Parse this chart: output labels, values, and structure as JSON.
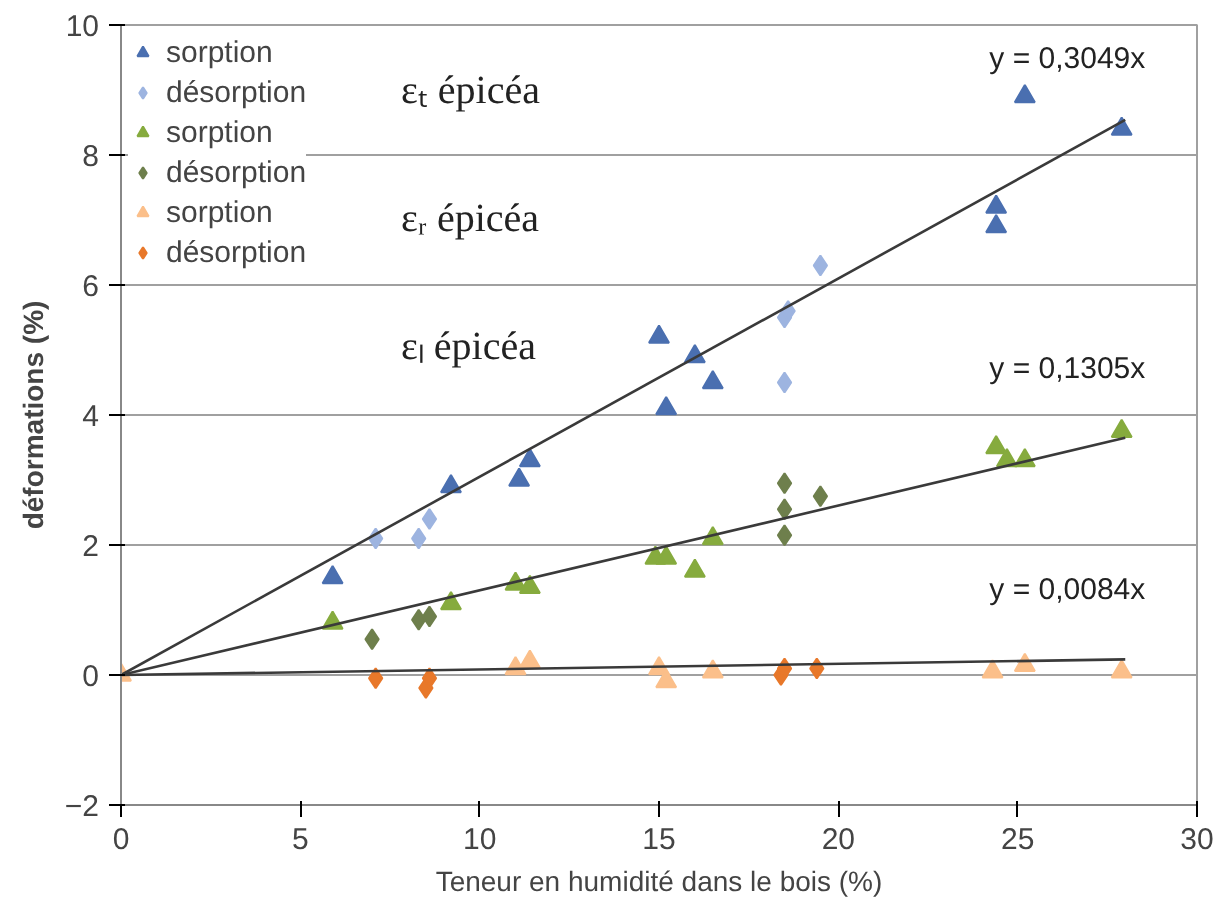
{
  "chart_data": {
    "type": "scatter",
    "xlabel": "Teneur en humidité dans le bois (%)",
    "ylabel": "déformations (%)",
    "xlim": [
      0,
      30
    ],
    "xticks": [
      0,
      5,
      10,
      15,
      20,
      25,
      30
    ],
    "ylim": [
      -2,
      10
    ],
    "yticks": [
      -2,
      0,
      2,
      4,
      6,
      8,
      10
    ],
    "grid": "y",
    "legend": "top left",
    "series": [
      {
        "name": "sorption",
        "color": "#4a6fb0",
        "marker": "triangle",
        "x": [
          5.9,
          9.2,
          11.1,
          11.4,
          15.0,
          15.2,
          16.0,
          16.5,
          24.4,
          24.4,
          25.2,
          27.9
        ],
        "values": [
          1.5,
          2.9,
          3.0,
          3.3,
          5.2,
          4.1,
          4.9,
          4.5,
          7.2,
          6.9,
          8.9,
          8.4
        ]
      },
      {
        "name": "désorption",
        "color": "#9db4e0",
        "marker": "diamond",
        "x": [
          7.1,
          8.3,
          8.6,
          18.5,
          18.6,
          19.5,
          18.5
        ],
        "values": [
          2.1,
          2.1,
          2.4,
          5.5,
          5.6,
          6.3,
          4.5
        ]
      },
      {
        "name": "sorption",
        "color": "#86ab3e",
        "marker": "triangle",
        "x": [
          5.9,
          9.2,
          11.0,
          11.4,
          14.9,
          15.2,
          16.0,
          16.5,
          24.4,
          24.7,
          25.2,
          27.9
        ],
        "values": [
          0.8,
          1.1,
          1.4,
          1.35,
          1.8,
          1.8,
          1.6,
          2.1,
          3.5,
          3.3,
          3.3,
          3.75
        ]
      },
      {
        "name": "désorption",
        "color": "#6e7f4c",
        "marker": "diamond",
        "x": [
          7.0,
          8.3,
          8.6,
          18.5,
          18.5,
          18.5,
          19.5
        ],
        "values": [
          0.55,
          0.85,
          0.9,
          2.95,
          2.55,
          2.15,
          2.75
        ]
      },
      {
        "name": "sorption",
        "color": "#fbbf8a",
        "marker": "triangle",
        "x": [
          0,
          11.0,
          11.4,
          15.0,
          15.2,
          16.5,
          24.3,
          25.2,
          27.9
        ],
        "values": [
          0,
          0.1,
          0.2,
          0.1,
          -0.1,
          0.05,
          0.05,
          0.15,
          0.05
        ]
      },
      {
        "name": "désorption",
        "color": "#e8782a",
        "marker": "diamond",
        "x": [
          7.1,
          8.5,
          8.6,
          18.4,
          18.5,
          19.4
        ],
        "values": [
          -0.05,
          -0.2,
          -0.05,
          0,
          0.1,
          0.1
        ]
      },
      {
        "type": "line",
        "color": "#3a3a3a",
        "x": [
          0,
          28
        ],
        "values": [
          0,
          8.54
        ]
      },
      {
        "type": "line",
        "color": "#3a3a3a",
        "x": [
          0,
          28
        ],
        "values": [
          0,
          3.65
        ]
      },
      {
        "type": "line",
        "color": "#3a3a3a",
        "x": [
          0,
          28
        ],
        "values": [
          0,
          0.24
        ]
      }
    ],
    "annotations": [
      "y = 0,3049x",
      "y = 0,1305x",
      "y = 0,0084x",
      "εₜ épicéa",
      "εᵣ épicéa",
      "εₗ épicéa"
    ]
  }
}
